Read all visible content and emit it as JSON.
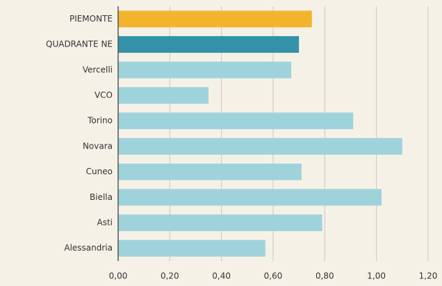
{
  "chart_data": {
    "type": "hbar",
    "categories": [
      "PIEMONTE",
      "QUADRANTE NE",
      "Vercelli",
      "VCO",
      "Torino",
      "Novara",
      "Cuneo",
      "Biella",
      "Asti",
      "Alessandria"
    ],
    "values": [
      0.75,
      0.7,
      0.67,
      0.35,
      0.91,
      1.1,
      0.71,
      1.02,
      0.79,
      0.57
    ],
    "colors": [
      "#f2b42c",
      "#3392a8",
      "#9fd3dc",
      "#9fd3dc",
      "#9fd3dc",
      "#9fd3dc",
      "#9fd3dc",
      "#9fd3dc",
      "#9fd3dc",
      "#9fd3dc"
    ],
    "xlim": [
      0,
      1.2
    ],
    "xticks": [
      {
        "value": 0,
        "label": "0,00"
      },
      {
        "value": 0.2,
        "label": "0,20"
      },
      {
        "value": 0.4,
        "label": "0,40"
      },
      {
        "value": 0.6,
        "label": "0,60"
      },
      {
        "value": 0.8,
        "label": "0,80"
      },
      {
        "value": 1.0,
        "label": "1,00"
      },
      {
        "value": 1.2,
        "label": "1,20"
      }
    ],
    "grid": true
  }
}
